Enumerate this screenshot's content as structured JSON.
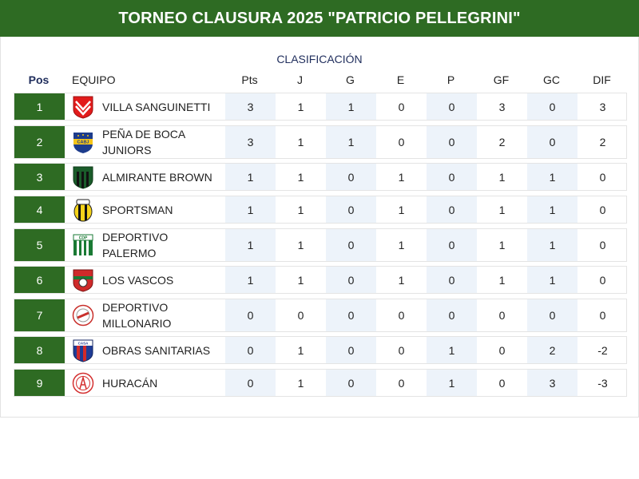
{
  "header": {
    "title": "TORNEO CLAUSURA 2025 \"PATRICIO PELLEGRINI\""
  },
  "table": {
    "title": "CLASIFICACIÓN",
    "columns": {
      "pos": "Pos",
      "team": "EQUIPO",
      "pts": "Pts",
      "j": "J",
      "g": "G",
      "e": "E",
      "p": "P",
      "gf": "GF",
      "gc": "GC",
      "dif": "DIF"
    },
    "rows": [
      {
        "pos": "1",
        "team": "VILLA SANGUINETTI",
        "pts": "3",
        "j": "1",
        "g": "1",
        "e": "0",
        "p": "0",
        "gf": "3",
        "gc": "0",
        "dif": "3",
        "logo": "villa-sanguinetti-crest-icon"
      },
      {
        "pos": "2",
        "team": "PEÑA DE BOCA JUNIORS",
        "pts": "3",
        "j": "1",
        "g": "1",
        "e": "0",
        "p": "0",
        "gf": "2",
        "gc": "0",
        "dif": "2",
        "logo": "boca-juniors-crest-icon"
      },
      {
        "pos": "3",
        "team": "ALMIRANTE BROWN",
        "pts": "1",
        "j": "1",
        "g": "0",
        "e": "1",
        "p": "0",
        "gf": "1",
        "gc": "1",
        "dif": "0",
        "logo": "almirante-brown-crest-icon"
      },
      {
        "pos": "4",
        "team": "SPORTSMAN",
        "pts": "1",
        "j": "1",
        "g": "0",
        "e": "1",
        "p": "0",
        "gf": "1",
        "gc": "1",
        "dif": "0",
        "logo": "sportsman-crest-icon"
      },
      {
        "pos": "5",
        "team": "DEPORTIVO PALERMO",
        "pts": "1",
        "j": "1",
        "g": "0",
        "e": "1",
        "p": "0",
        "gf": "1",
        "gc": "1",
        "dif": "0",
        "logo": "deportivo-palermo-crest-icon"
      },
      {
        "pos": "6",
        "team": "LOS VASCOS",
        "pts": "1",
        "j": "1",
        "g": "0",
        "e": "1",
        "p": "0",
        "gf": "1",
        "gc": "1",
        "dif": "0",
        "logo": "los-vascos-crest-icon"
      },
      {
        "pos": "7",
        "team": "DEPORTIVO MILLONARIO",
        "pts": "0",
        "j": "0",
        "g": "0",
        "e": "0",
        "p": "0",
        "gf": "0",
        "gc": "0",
        "dif": "0",
        "logo": "deportivo-millonario-crest-icon"
      },
      {
        "pos": "8",
        "team": "OBRAS SANITARIAS",
        "pts": "0",
        "j": "1",
        "g": "0",
        "e": "0",
        "p": "1",
        "gf": "0",
        "gc": "2",
        "dif": "-2",
        "logo": "obras-sanitarias-crest-icon"
      },
      {
        "pos": "9",
        "team": "HURACÁN",
        "pts": "0",
        "j": "1",
        "g": "0",
        "e": "0",
        "p": "1",
        "gf": "0",
        "gc": "3",
        "dif": "-3",
        "logo": "huracan-crest-icon"
      }
    ]
  },
  "colors": {
    "header_bg": "#2e6b23",
    "pos_bg": "#2e6b23",
    "shade": "#edf3fa",
    "title_text": "#1f2d5c"
  }
}
